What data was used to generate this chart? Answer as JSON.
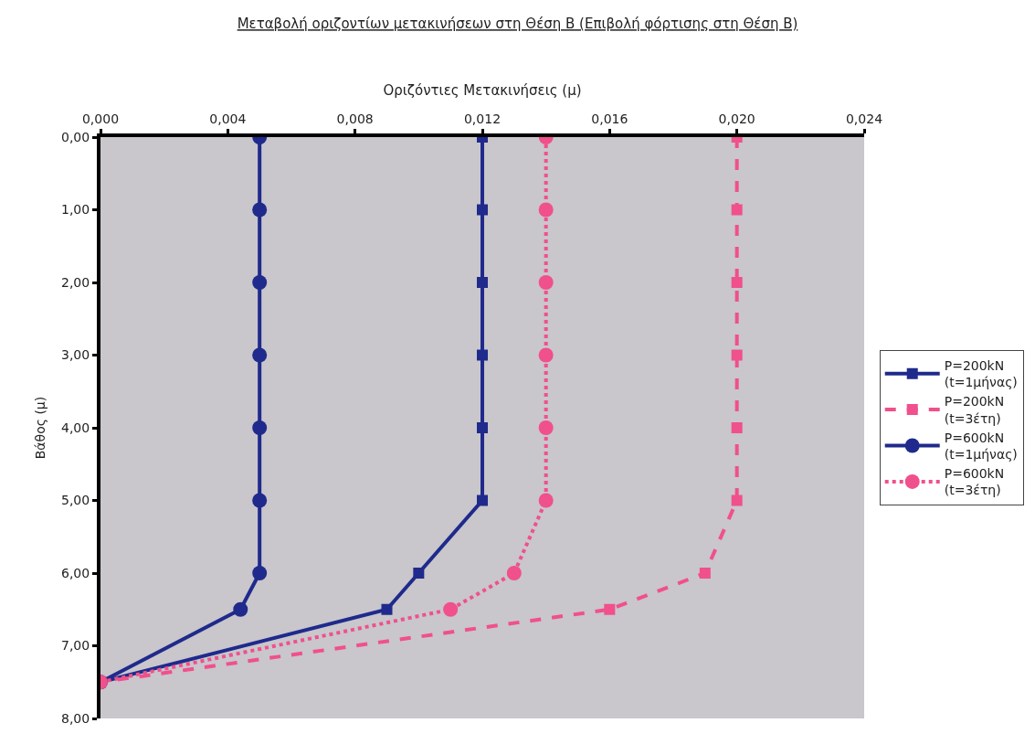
{
  "chart_data": {
    "type": "line",
    "title": "Μεταβολή οριζοντίων μετακινήσεων στη Θέση Β (Επιβολή φόρτισης στη Θέση Β)",
    "xlabel": "Οριζόντιες Μετακινήσεις (μ)",
    "ylabel": "Βάθος (μ)",
    "xlim": [
      0,
      0.024
    ],
    "xticks": [
      {
        "value": 0,
        "label": "0,000"
      },
      {
        "value": 0.004,
        "label": "0,004"
      },
      {
        "value": 0.008,
        "label": "0,008"
      },
      {
        "value": 0.012,
        "label": "0,012"
      },
      {
        "value": 0.016,
        "label": "0,016"
      },
      {
        "value": 0.02,
        "label": "0,020"
      },
      {
        "value": 0.024,
        "label": "0,024"
      }
    ],
    "ylim": [
      8,
      0
    ],
    "yticks": [
      {
        "value": 0,
        "label": "0,00"
      },
      {
        "value": 1,
        "label": "1,00"
      },
      {
        "value": 2,
        "label": "2,00"
      },
      {
        "value": 3,
        "label": "3,00"
      },
      {
        "value": 4,
        "label": "4,00"
      },
      {
        "value": 5,
        "label": "5,00"
      },
      {
        "value": 6,
        "label": "6,00"
      },
      {
        "value": 7,
        "label": "7,00"
      },
      {
        "value": 8,
        "label": "8,00"
      }
    ],
    "grid": false,
    "legend": "right",
    "series": [
      {
        "name": "P=200kN\n(t=1μήνας)",
        "color": "#1f2a8c",
        "marker": "square",
        "line_style": "solid",
        "x": [
          0.012,
          0.012,
          0.012,
          0.012,
          0.012,
          0.012,
          0.01,
          0.009,
          0
        ],
        "values": [
          0,
          1,
          2,
          3,
          4,
          5,
          6,
          6.5,
          7.5
        ]
      },
      {
        "name": "P=200kN\n(t=3έτη)",
        "color": "#f0508c",
        "marker": "square",
        "line_style": "dashed",
        "x": [
          0.02,
          0.02,
          0.02,
          0.02,
          0.02,
          0.02,
          0.019,
          0.016,
          0
        ],
        "values": [
          0,
          1,
          2,
          3,
          4,
          5,
          6,
          6.5,
          7.5
        ]
      },
      {
        "name": "P=600kN\n(t=1μήνας)",
        "color": "#1f2a8c",
        "marker": "circle",
        "line_style": "solid",
        "x": [
          0.005,
          0.005,
          0.005,
          0.005,
          0.005,
          0.005,
          0.005,
          0.0044,
          0
        ],
        "values": [
          0,
          1,
          2,
          3,
          4,
          5,
          6,
          6.5,
          7.5
        ]
      },
      {
        "name": "P=600kN\n(t=3έτη)",
        "color": "#f0508c",
        "marker": "circle",
        "line_style": "dotted",
        "x": [
          0.014,
          0.014,
          0.014,
          0.014,
          0.014,
          0.014,
          0.013,
          0.011,
          0
        ],
        "values": [
          0,
          1,
          2,
          3,
          4,
          5,
          6,
          6.5,
          7.5
        ]
      }
    ]
  }
}
